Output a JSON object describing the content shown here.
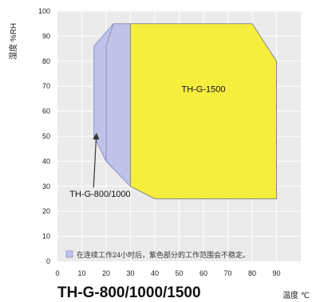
{
  "chart_data": {
    "type": "area",
    "xlabel": "温度 ℃",
    "ylabel": "湿度 %RH",
    "xlim": [
      0,
      100
    ],
    "ylim": [
      0,
      100
    ],
    "x_ticks": [
      0,
      10,
      20,
      30,
      40,
      50,
      60,
      70,
      80,
      90
    ],
    "y_ticks": [
      0,
      10,
      20,
      30,
      40,
      50,
      60,
      70,
      80,
      90,
      100
    ],
    "grid": true,
    "series": [
      {
        "name": "TH-G-800/1000",
        "color": "#c0c2ea",
        "points": [
          [
            15,
            86
          ],
          [
            23,
            95
          ],
          [
            30,
            95
          ],
          [
            30,
            30
          ],
          [
            20,
            40
          ],
          [
            15,
            50
          ]
        ]
      },
      {
        "name": "TH-G-1500",
        "color": "#f5ee3d",
        "points": [
          [
            30,
            95
          ],
          [
            80,
            95
          ],
          [
            90,
            80
          ],
          [
            90,
            25
          ],
          [
            40,
            25
          ],
          [
            30,
            30
          ]
        ]
      }
    ],
    "annotations": [
      {
        "text": "TH-G-1500",
        "x": 60,
        "y": 69
      },
      {
        "text": "TH-G-800/1000",
        "x": 5,
        "y": 27,
        "arrow_to": [
          16,
          51
        ]
      }
    ],
    "note": "在连续工作24小时后，紫色部分的工作范围会不稳定。",
    "model_title": "TH-G-800/1000/1500"
  }
}
